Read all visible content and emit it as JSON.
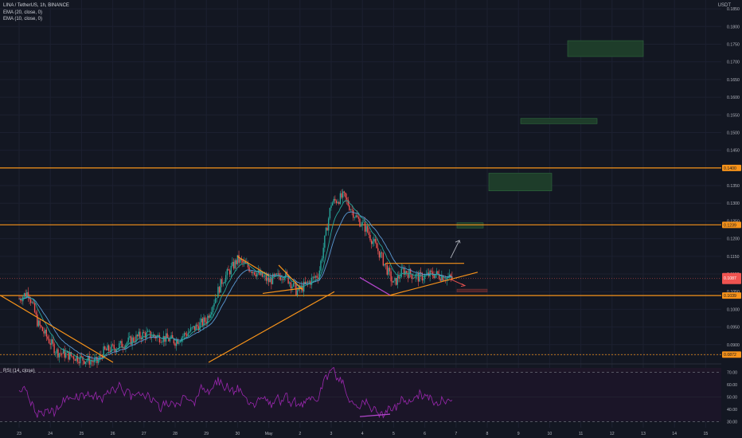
{
  "header": {
    "symbol": "LINA / TetherUS, 1h, BINANCE",
    "ema20": "EMA (20, close, 0)",
    "ema10": "EMA (10, close, 0)",
    "rsi": "RSI (14, close)",
    "quote": "USDT"
  },
  "chart_data": {
    "type": "candlestick",
    "price_axis": {
      "min": 0.085,
      "max": 0.1875,
      "ticks": [
        "0.1850",
        "0.1800",
        "0.1750",
        "0.1700",
        "0.1650",
        "0.1600",
        "0.1550",
        "0.1500",
        "0.1450",
        "0.1400",
        "0.1350",
        "0.1300",
        "0.1250",
        "0.1200",
        "0.1150",
        "0.1100",
        "0.1050",
        "0.1000",
        "0.0950",
        "0.0900",
        "0.0872"
      ]
    },
    "level_badges": [
      {
        "label": "0.1400",
        "value": 0.14
      },
      {
        "label": "0.1239",
        "value": 0.1239
      },
      {
        "label": "0.1039",
        "value": 0.1039
      },
      {
        "label": "0.0872",
        "value": 0.0872
      }
    ],
    "current_price": {
      "label": "0.1087",
      "value": 0.1087
    },
    "time_axis": [
      "23",
      "24",
      "25",
      "26",
      "27",
      "28",
      "29",
      "30",
      "May",
      "2",
      "3",
      "4",
      "5",
      "6",
      "7",
      "8",
      "9",
      "10",
      "11",
      "12",
      "13",
      "14",
      "15"
    ],
    "horizontal_levels": [
      0.14,
      0.1239,
      0.1039,
      0.0872
    ],
    "rsi": {
      "ticks": [
        "70.00",
        "60.00",
        "50.00",
        "40.00",
        "30.00"
      ],
      "overbought": 70,
      "oversold": 30,
      "min": 25,
      "max": 75
    },
    "target_zones": [
      {
        "top": 0.176,
        "bottom": 0.1715,
        "color": "#1e3d2a"
      },
      {
        "top": 0.154,
        "bottom": 0.1525,
        "color": "#1e3d2a"
      },
      {
        "top": 0.1385,
        "bottom": 0.1335,
        "color": "#1e3d2a"
      },
      {
        "top": 0.1245,
        "bottom": 0.123,
        "color": "#1e3d2a"
      },
      {
        "top": 0.1057,
        "bottom": 0.1049,
        "color": "#4a2328"
      }
    ],
    "colors": {
      "up": "#26a69a",
      "down": "#ef5350",
      "level": "#f7931a",
      "ema20": "#5b9bd5",
      "ema10": "#26a69a",
      "rsi": "#9c27b0",
      "divergence": "#b045c9"
    }
  }
}
